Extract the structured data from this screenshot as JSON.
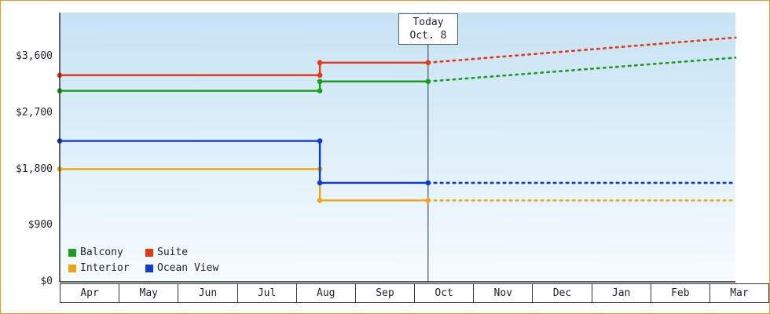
{
  "window": {
    "frame_border_color": "#f09a1e"
  },
  "chart_data": {
    "type": "line",
    "title": "",
    "description": "Step line chart of cruise cabin prices by month with solid history until today and dotted forecast after",
    "x_axis": {
      "months": [
        "Apr",
        "May",
        "Jun",
        "Jul",
        "Aug",
        "Sep",
        "Oct",
        "Nov",
        "Dec",
        "Jan",
        "Feb",
        "Mar"
      ]
    },
    "y_axis": {
      "tick_labels": [
        "$0",
        "$900",
        "$1,800",
        "$2,700",
        "$3,600"
      ],
      "tick_values": [
        0,
        900,
        1800,
        2700,
        3600
      ]
    },
    "ylim": [
      0,
      4300
    ],
    "grid": false,
    "today_marker": {
      "line1": "Today",
      "line2": "Oct. 8",
      "month_frac": 6.23,
      "line_color": "#4a5568"
    },
    "price_change_month_frac": 4.4,
    "forecast_end_month_frac": 11.43,
    "series": [
      {
        "name": "Balcony",
        "color": "#1b9e1b",
        "price_until_aug": 3050,
        "price_after_aug": 3200,
        "forecast_mar": 3580
      },
      {
        "name": "Suite",
        "color": "#ec3610",
        "price_until_aug": 3300,
        "price_after_aug": 3500,
        "forecast_mar": 3900
      },
      {
        "name": "Interior",
        "color": "#f0a513",
        "price_until_aug": 1800,
        "price_after_aug": 1300,
        "forecast_mar": 1300
      },
      {
        "name": "Ocean View",
        "color": "#0d3bd6",
        "price_until_aug": 2250,
        "price_after_aug": 1580,
        "forecast_mar": 1580
      }
    ],
    "legend": {
      "position": "bottom-left-inside",
      "rows": [
        [
          "Balcony",
          "Suite"
        ],
        [
          "Interior",
          "Ocean View"
        ]
      ]
    },
    "plot_background": {
      "top": "#c6e2f3",
      "bottom": "#f7fcff"
    },
    "axis_color": "#222222"
  }
}
